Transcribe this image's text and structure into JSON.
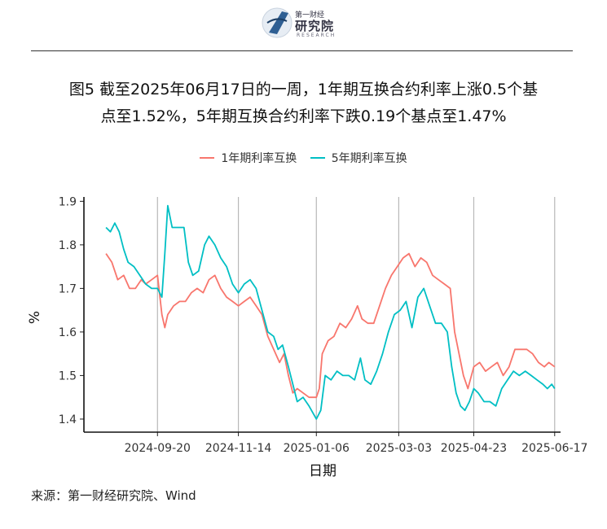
{
  "header": {
    "logo_cn": "第一财经",
    "logo_main": "研究院",
    "logo_en": "RESEARCH"
  },
  "figure": {
    "title_line1": "图5  截至2025年06月17日的一周，1年期互换合约利率上涨0.5个基",
    "title_line2": "点至1.52%，5年期互换合约利率下跌0.19个基点至1.47%"
  },
  "source": "来源：第一财经研究院、Wind",
  "chart_data": {
    "type": "line",
    "xlabel": "日期",
    "ylabel": "%",
    "ylim": [
      1.37,
      1.91
    ],
    "yticks": [
      1.4,
      1.5,
      1.6,
      1.7,
      1.8,
      1.9
    ],
    "xlim": [
      "2024-08-01",
      "2025-06-21"
    ],
    "xticks": [
      "2024-09-20",
      "2024-11-14",
      "2025-01-06",
      "2025-03-03",
      "2025-04-23",
      "2025-06-17"
    ],
    "legend_position": "top",
    "grid": "vertical lines at x ticks",
    "series": [
      {
        "name": "1年期利率互换",
        "color": "#F8766D",
        "points": [
          [
            "2024-08-16",
            1.78
          ],
          [
            "2024-08-20",
            1.76
          ],
          [
            "2024-08-24",
            1.72
          ],
          [
            "2024-08-28",
            1.73
          ],
          [
            "2024-09-01",
            1.7
          ],
          [
            "2024-09-05",
            1.7
          ],
          [
            "2024-09-09",
            1.72
          ],
          [
            "2024-09-12",
            1.71
          ],
          [
            "2024-09-16",
            1.72
          ],
          [
            "2024-09-20",
            1.73
          ],
          [
            "2024-09-23",
            1.64
          ],
          [
            "2024-09-25",
            1.61
          ],
          [
            "2024-09-27",
            1.64
          ],
          [
            "2024-10-01",
            1.66
          ],
          [
            "2024-10-05",
            1.67
          ],
          [
            "2024-10-09",
            1.67
          ],
          [
            "2024-10-13",
            1.69
          ],
          [
            "2024-10-17",
            1.7
          ],
          [
            "2024-10-21",
            1.69
          ],
          [
            "2024-10-25",
            1.72
          ],
          [
            "2024-10-29",
            1.73
          ],
          [
            "2024-11-02",
            1.7
          ],
          [
            "2024-11-06",
            1.68
          ],
          [
            "2024-11-10",
            1.67
          ],
          [
            "2024-11-14",
            1.66
          ],
          [
            "2024-11-18",
            1.67
          ],
          [
            "2024-11-22",
            1.68
          ],
          [
            "2024-11-26",
            1.66
          ],
          [
            "2024-11-30",
            1.64
          ],
          [
            "2024-12-04",
            1.59
          ],
          [
            "2024-12-08",
            1.56
          ],
          [
            "2024-12-12",
            1.53
          ],
          [
            "2024-12-15",
            1.55
          ],
          [
            "2024-12-18",
            1.5
          ],
          [
            "2024-12-21",
            1.46
          ],
          [
            "2024-12-24",
            1.47
          ],
          [
            "2024-12-28",
            1.46
          ],
          [
            "2025-01-01",
            1.45
          ],
          [
            "2025-01-06",
            1.45
          ],
          [
            "2025-01-08",
            1.47
          ],
          [
            "2025-01-10",
            1.55
          ],
          [
            "2025-01-14",
            1.58
          ],
          [
            "2025-01-18",
            1.59
          ],
          [
            "2025-01-22",
            1.62
          ],
          [
            "2025-01-26",
            1.61
          ],
          [
            "2025-01-30",
            1.63
          ],
          [
            "2025-02-03",
            1.66
          ],
          [
            "2025-02-06",
            1.63
          ],
          [
            "2025-02-10",
            1.62
          ],
          [
            "2025-02-14",
            1.62
          ],
          [
            "2025-02-18",
            1.66
          ],
          [
            "2025-02-22",
            1.7
          ],
          [
            "2025-02-26",
            1.73
          ],
          [
            "2025-03-02",
            1.75
          ],
          [
            "2025-03-06",
            1.77
          ],
          [
            "2025-03-10",
            1.78
          ],
          [
            "2025-03-14",
            1.75
          ],
          [
            "2025-03-18",
            1.77
          ],
          [
            "2025-03-22",
            1.76
          ],
          [
            "2025-03-26",
            1.73
          ],
          [
            "2025-03-30",
            1.72
          ],
          [
            "2025-04-03",
            1.71
          ],
          [
            "2025-04-07",
            1.7
          ],
          [
            "2025-04-10",
            1.6
          ],
          [
            "2025-04-13",
            1.55
          ],
          [
            "2025-04-16",
            1.5
          ],
          [
            "2025-04-19",
            1.47
          ],
          [
            "2025-04-23",
            1.52
          ],
          [
            "2025-04-27",
            1.53
          ],
          [
            "2025-05-01",
            1.51
          ],
          [
            "2025-05-05",
            1.52
          ],
          [
            "2025-05-09",
            1.53
          ],
          [
            "2025-05-13",
            1.5
          ],
          [
            "2025-05-17",
            1.52
          ],
          [
            "2025-05-21",
            1.56
          ],
          [
            "2025-05-25",
            1.56
          ],
          [
            "2025-05-29",
            1.56
          ],
          [
            "2025-06-02",
            1.55
          ],
          [
            "2025-06-06",
            1.53
          ],
          [
            "2025-06-10",
            1.52
          ],
          [
            "2025-06-13",
            1.53
          ],
          [
            "2025-06-17",
            1.52
          ]
        ]
      },
      {
        "name": "5年期利率互换",
        "color": "#00BFC4",
        "points": [
          [
            "2024-08-16",
            1.84
          ],
          [
            "2024-08-19",
            1.83
          ],
          [
            "2024-08-22",
            1.85
          ],
          [
            "2024-08-25",
            1.83
          ],
          [
            "2024-08-28",
            1.79
          ],
          [
            "2024-08-31",
            1.76
          ],
          [
            "2024-09-04",
            1.75
          ],
          [
            "2024-09-08",
            1.73
          ],
          [
            "2024-09-12",
            1.71
          ],
          [
            "2024-09-16",
            1.7
          ],
          [
            "2024-09-20",
            1.7
          ],
          [
            "2024-09-23",
            1.68
          ],
          [
            "2024-09-25",
            1.78
          ],
          [
            "2024-09-27",
            1.89
          ],
          [
            "2024-09-30",
            1.84
          ],
          [
            "2024-10-04",
            1.84
          ],
          [
            "2024-10-08",
            1.84
          ],
          [
            "2024-10-11",
            1.76
          ],
          [
            "2024-10-14",
            1.73
          ],
          [
            "2024-10-18",
            1.74
          ],
          [
            "2024-10-22",
            1.8
          ],
          [
            "2024-10-25",
            1.82
          ],
          [
            "2024-10-29",
            1.8
          ],
          [
            "2024-11-02",
            1.77
          ],
          [
            "2024-11-06",
            1.75
          ],
          [
            "2024-11-10",
            1.71
          ],
          [
            "2024-11-14",
            1.69
          ],
          [
            "2024-11-18",
            1.71
          ],
          [
            "2024-11-22",
            1.72
          ],
          [
            "2024-11-26",
            1.7
          ],
          [
            "2024-11-30",
            1.65
          ],
          [
            "2024-12-04",
            1.6
          ],
          [
            "2024-12-08",
            1.59
          ],
          [
            "2024-12-11",
            1.56
          ],
          [
            "2024-12-14",
            1.57
          ],
          [
            "2024-12-18",
            1.52
          ],
          [
            "2024-12-21",
            1.48
          ],
          [
            "2024-12-24",
            1.44
          ],
          [
            "2024-12-28",
            1.45
          ],
          [
            "2025-01-01",
            1.43
          ],
          [
            "2025-01-06",
            1.4
          ],
          [
            "2025-01-09",
            1.42
          ],
          [
            "2025-01-12",
            1.5
          ],
          [
            "2025-01-16",
            1.49
          ],
          [
            "2025-01-20",
            1.51
          ],
          [
            "2025-01-24",
            1.5
          ],
          [
            "2025-01-28",
            1.5
          ],
          [
            "2025-02-01",
            1.49
          ],
          [
            "2025-02-05",
            1.54
          ],
          [
            "2025-02-08",
            1.49
          ],
          [
            "2025-02-12",
            1.48
          ],
          [
            "2025-02-16",
            1.51
          ],
          [
            "2025-02-20",
            1.55
          ],
          [
            "2025-02-24",
            1.6
          ],
          [
            "2025-02-28",
            1.64
          ],
          [
            "2025-03-04",
            1.65
          ],
          [
            "2025-03-08",
            1.67
          ],
          [
            "2025-03-12",
            1.61
          ],
          [
            "2025-03-16",
            1.68
          ],
          [
            "2025-03-20",
            1.7
          ],
          [
            "2025-03-24",
            1.66
          ],
          [
            "2025-03-28",
            1.62
          ],
          [
            "2025-04-01",
            1.62
          ],
          [
            "2025-04-05",
            1.6
          ],
          [
            "2025-04-08",
            1.52
          ],
          [
            "2025-04-11",
            1.46
          ],
          [
            "2025-04-14",
            1.43
          ],
          [
            "2025-04-17",
            1.42
          ],
          [
            "2025-04-20",
            1.44
          ],
          [
            "2025-04-23",
            1.47
          ],
          [
            "2025-04-26",
            1.46
          ],
          [
            "2025-04-30",
            1.44
          ],
          [
            "2025-05-04",
            1.44
          ],
          [
            "2025-05-08",
            1.43
          ],
          [
            "2025-05-12",
            1.47
          ],
          [
            "2025-05-16",
            1.49
          ],
          [
            "2025-05-20",
            1.51
          ],
          [
            "2025-05-24",
            1.5
          ],
          [
            "2025-05-28",
            1.51
          ],
          [
            "2025-06-01",
            1.5
          ],
          [
            "2025-06-05",
            1.49
          ],
          [
            "2025-06-09",
            1.48
          ],
          [
            "2025-06-12",
            1.47
          ],
          [
            "2025-06-15",
            1.48
          ],
          [
            "2025-06-17",
            1.47
          ]
        ]
      }
    ]
  }
}
